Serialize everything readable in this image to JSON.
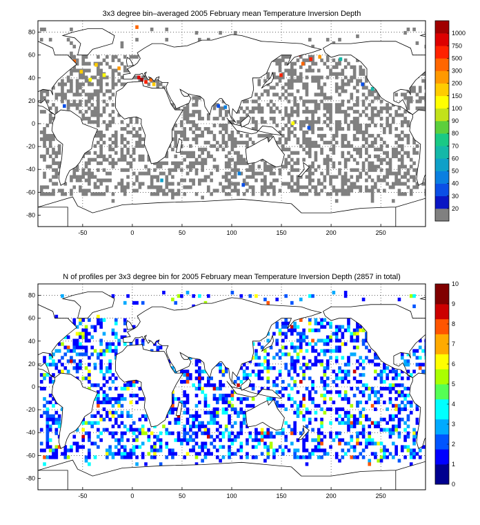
{
  "colors": {
    "gray": "#808080",
    "land_stroke": "#000000",
    "map1_palette": [
      "#808080",
      "#0a16c4",
      "#0b4fe6",
      "#0a7fe0",
      "#0fa0c8",
      "#14b8a8",
      "#19c985",
      "#5ccf3c",
      "#c2e21a",
      "#ffff00",
      "#ffcc00",
      "#ff9900",
      "#ff6600",
      "#ff2200",
      "#dd0000",
      "#a00000"
    ],
    "map2_palette": [
      "#00008f",
      "#0000ff",
      "#0055ff",
      "#00aaff",
      "#00ffff",
      "#55ff55",
      "#aaff00",
      "#ffff00",
      "#ffaa00",
      "#ff5500",
      "#cc0000",
      "#800000"
    ]
  },
  "chart_data": [
    {
      "type": "heatmap",
      "title": "3x3 degree bin–averaged 2005 February mean Temperature Inversion Depth",
      "x_ticks": [
        "-50",
        "0",
        "50",
        "100",
        "150",
        "200",
        "250"
      ],
      "y_ticks": [
        "80",
        "60",
        "40",
        "20",
        "0",
        "-20",
        "-40",
        "-60",
        "-80"
      ],
      "xlim": [
        -95,
        295
      ],
      "ylim": [
        -90,
        90
      ],
      "grid": true,
      "colorbar": {
        "labels": [
          "20",
          "30",
          "40",
          "50",
          "60",
          "70",
          "80",
          "90",
          "100",
          "150",
          "200",
          "300",
          "500",
          "750",
          "1000"
        ],
        "scale": "categorical"
      },
      "bins_note_x": "3x3 degree cells; most occupied cells are gray (<=20), scattered cells colored",
      "colored_cells": [
        {
          "lon": -60,
          "lat": 56,
          "value": 300
        },
        {
          "lon": -53,
          "lat": 47,
          "value": 150
        },
        {
          "lon": -38,
          "lat": 53,
          "value": 150
        },
        {
          "lon": -30,
          "lat": 44,
          "value": 100
        },
        {
          "lon": -15,
          "lat": 50,
          "value": 200
        },
        {
          "lon": 5,
          "lat": 42,
          "value": 750
        },
        {
          "lon": 8,
          "lat": 40,
          "value": 1000
        },
        {
          "lon": 12,
          "lat": 38,
          "value": 500
        },
        {
          "lon": 17,
          "lat": 40,
          "value": 300
        },
        {
          "lon": 20,
          "lat": 36,
          "value": 150
        },
        {
          "lon": 3,
          "lat": 86,
          "value": 300
        },
        {
          "lon": 85,
          "lat": 17,
          "value": 30
        },
        {
          "lon": 92,
          "lat": 16,
          "value": 40
        },
        {
          "lon": 148,
          "lat": 44,
          "value": 500
        },
        {
          "lon": 166,
          "lat": 62,
          "value": 750
        },
        {
          "lon": 178,
          "lat": 58,
          "value": 500
        },
        {
          "lon": 187,
          "lat": 60,
          "value": 200
        },
        {
          "lon": 208,
          "lat": 58,
          "value": 60
        },
        {
          "lon": 230,
          "lat": 36,
          "value": 30
        },
        {
          "lon": 240,
          "lat": 32,
          "value": 60
        },
        {
          "lon": 170,
          "lat": 54,
          "value": 300
        },
        {
          "lon": 160,
          "lat": 2,
          "value": 100
        },
        {
          "lon": 176,
          "lat": -2,
          "value": 30
        },
        {
          "lon": 106,
          "lat": -42,
          "value": 40
        },
        {
          "lon": 110,
          "lat": -52,
          "value": 30
        },
        {
          "lon": 28,
          "lat": -48,
          "value": 50
        },
        {
          "lon": -70,
          "lat": 17,
          "value": 30
        },
        {
          "lon": -44,
          "lat": 40,
          "value": 100
        }
      ]
    },
    {
      "type": "heatmap",
      "title": "N of profiles per 3x3 degree bin for 2005 February mean Temperature Inversion Depth  (2857 in total)",
      "x_ticks": [
        "-50",
        "0",
        "50",
        "100",
        "150",
        "200",
        "250"
      ],
      "y_ticks": [
        "80",
        "60",
        "40",
        "20",
        "0",
        "-20",
        "-40",
        "-60",
        "-80"
      ],
      "xlim": [
        -95,
        295
      ],
      "ylim": [
        -90,
        90
      ],
      "grid": true,
      "total_profiles": 2857,
      "colorbar": {
        "labels": [
          "0",
          "1",
          "2",
          "3",
          "4",
          "5",
          "6",
          "7",
          "8",
          "9",
          "10"
        ],
        "range": [
          0,
          10
        ]
      }
    }
  ]
}
